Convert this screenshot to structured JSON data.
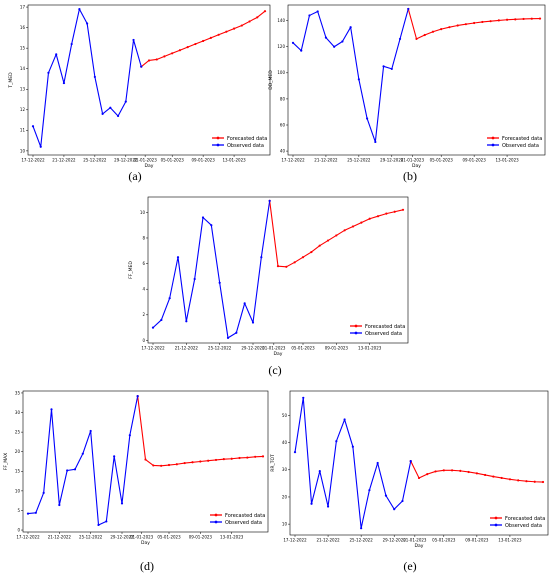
{
  "chart_data": [
    {
      "id": "a",
      "panel_label": "(a)",
      "type": "line",
      "xlabel": "Day",
      "ylabel": "T_MED",
      "ylim": [
        9.8,
        17.1
      ],
      "yticks": [
        10,
        11,
        12,
        13,
        14,
        15,
        16,
        17
      ],
      "xlim": [
        0,
        30
      ],
      "xtick_labels": [
        "17-12-2022",
        "21-12-2022",
        "25-12-2022",
        "29-12-2022",
        "01-01-2023",
        "05-01-2023",
        "09-01-2023",
        "13-01-2023"
      ],
      "xtick_pos": [
        0,
        4,
        8,
        12,
        14.5,
        18,
        22,
        26
      ],
      "legend_loc": "lower right",
      "legend": {
        "forecast": "Forecasted data",
        "observed": "Observed data"
      },
      "colors": {
        "forecast": "#ff0000",
        "observed": "#0000ff"
      },
      "observed": {
        "x": [
          0,
          1,
          2,
          3,
          4,
          5,
          6,
          7,
          8,
          9,
          10,
          11,
          12,
          13,
          14
        ],
        "y": [
          11.2,
          10.2,
          13.8,
          14.7,
          13.3,
          15.2,
          16.9,
          16.2,
          13.6,
          11.8,
          12.1,
          11.7,
          12.4,
          15.4,
          14.1
        ]
      },
      "forecast": {
        "x": [
          14,
          15,
          16,
          17,
          18,
          19,
          20,
          21,
          22,
          23,
          24,
          25,
          26,
          27,
          28,
          29,
          30
        ],
        "y": [
          14.1,
          14.4,
          14.45,
          14.6,
          14.75,
          14.9,
          15.05,
          15.2,
          15.35,
          15.5,
          15.65,
          15.8,
          15.95,
          16.1,
          16.3,
          16.5,
          16.8
        ]
      }
    },
    {
      "id": "b",
      "panel_label": "(b)",
      "type": "line",
      "xlabel": "Day",
      "ylabel": "DD_MED",
      "ylim": [
        37,
        152
      ],
      "yticks": [
        40,
        60,
        80,
        100,
        120,
        140
      ],
      "xlim": [
        0,
        30
      ],
      "xtick_labels": [
        "17-12-2022",
        "21-12-2022",
        "25-12-2022",
        "29-12-2022",
        "01-01-2023",
        "05-01-2023",
        "09-01-2023",
        "13-01-2023"
      ],
      "xtick_pos": [
        0,
        4,
        8,
        12,
        14.5,
        18,
        22,
        26
      ],
      "legend_loc": "lower right",
      "legend": {
        "forecast": "Forecasted data",
        "observed": "Observed data"
      },
      "colors": {
        "forecast": "#ff0000",
        "observed": "#0000ff"
      },
      "observed": {
        "x": [
          0,
          1,
          2,
          3,
          4,
          5,
          6,
          7,
          8,
          9,
          10,
          11,
          12,
          13,
          14
        ],
        "y": [
          123,
          117,
          144,
          147,
          127,
          120,
          124,
          135,
          95,
          65,
          47,
          105,
          103,
          126,
          149
        ]
      },
      "forecast": {
        "x": [
          14,
          15,
          16,
          17,
          18,
          19,
          20,
          21,
          22,
          23,
          24,
          25,
          26,
          27,
          28,
          29,
          30
        ],
        "y": [
          149,
          126,
          129,
          131.5,
          133.5,
          135,
          136.3,
          137.3,
          138.2,
          139,
          139.6,
          140.2,
          140.7,
          141,
          141.3,
          141.5,
          141.6
        ]
      }
    },
    {
      "id": "c",
      "panel_label": "(c)",
      "type": "line",
      "xlabel": "Day",
      "ylabel": "FF_MED",
      "ylim": [
        -0.2,
        11.2
      ],
      "yticks": [
        0,
        2,
        4,
        6,
        8,
        10
      ],
      "xlim": [
        0,
        30
      ],
      "xtick_labels": [
        "17-12-2022",
        "21-12-2022",
        "25-12-2022",
        "29-12-2022",
        "01-01-2023",
        "05-01-2023",
        "09-01-2023",
        "13-01-2023"
      ],
      "xtick_pos": [
        0,
        4,
        8,
        12,
        14.5,
        18,
        22,
        26
      ],
      "legend_loc": "lower right",
      "legend": {
        "forecast": "Forecasted data",
        "observed": "Observed data"
      },
      "colors": {
        "forecast": "#ff0000",
        "observed": "#0000ff"
      },
      "observed": {
        "x": [
          0,
          1,
          2,
          3,
          4,
          5,
          6,
          7,
          8,
          9,
          10,
          11,
          12,
          13,
          14
        ],
        "y": [
          1.0,
          1.6,
          3.3,
          6.5,
          1.5,
          4.8,
          9.6,
          9.0,
          4.5,
          0.2,
          0.6,
          2.9,
          1.4,
          6.5,
          10.9
        ]
      },
      "forecast": {
        "x": [
          14,
          15,
          16,
          17,
          18,
          19,
          20,
          21,
          22,
          23,
          24,
          25,
          26,
          27,
          28,
          29,
          30
        ],
        "y": [
          10.9,
          5.8,
          5.75,
          6.1,
          6.5,
          6.9,
          7.4,
          7.8,
          8.2,
          8.6,
          8.9,
          9.2,
          9.5,
          9.7,
          9.9,
          10.05,
          10.2
        ]
      }
    },
    {
      "id": "d",
      "panel_label": "(d)",
      "type": "line",
      "xlabel": "Day",
      "ylabel": "FF_MAX",
      "ylim": [
        -0.5,
        35.5
      ],
      "yticks": [
        0,
        5,
        10,
        15,
        20,
        25,
        30,
        35
      ],
      "xlim": [
        0,
        30
      ],
      "xtick_labels": [
        "17-12-2022",
        "21-12-2022",
        "25-12-2022",
        "29-12-2022",
        "01-01-2023",
        "05-01-2023",
        "09-01-2023",
        "13-01-2023"
      ],
      "xtick_pos": [
        0,
        4,
        8,
        12,
        14.5,
        18,
        22,
        26
      ],
      "legend_loc": "lower right",
      "legend": {
        "forecast": "Forecasted data",
        "observed": "Observed data"
      },
      "colors": {
        "forecast": "#ff0000",
        "observed": "#0000ff"
      },
      "observed": {
        "x": [
          0,
          1,
          2,
          3,
          4,
          5,
          6,
          7,
          8,
          9,
          10,
          11,
          12,
          13,
          14
        ],
        "y": [
          4.2,
          4.4,
          9.5,
          30.8,
          6.4,
          15.2,
          15.5,
          19.5,
          25.3,
          1.3,
          2.2,
          18.8,
          6.8,
          24.2,
          34.2
        ]
      },
      "forecast": {
        "x": [
          14,
          15,
          16,
          17,
          18,
          19,
          20,
          21,
          22,
          23,
          24,
          25,
          26,
          27,
          28,
          29,
          30
        ],
        "y": [
          34.2,
          18.0,
          16.5,
          16.4,
          16.6,
          16.8,
          17.1,
          17.3,
          17.5,
          17.7,
          17.9,
          18.1,
          18.2,
          18.4,
          18.5,
          18.7,
          18.8
        ]
      }
    },
    {
      "id": "e",
      "panel_label": "(e)",
      "type": "line",
      "xlabel": "Day",
      "ylabel": "RR_TOT",
      "ylim": [
        6,
        59
      ],
      "yticks": [
        10,
        20,
        30,
        40,
        50
      ],
      "xlim": [
        0,
        30
      ],
      "xtick_labels": [
        "17-12-2022",
        "21-12-2022",
        "25-12-2022",
        "29-12-2022",
        "01-01-2023",
        "05-01-2023",
        "09-01-2023",
        "13-01-2023"
      ],
      "xtick_pos": [
        0,
        4,
        8,
        12,
        14.5,
        18,
        22,
        26
      ],
      "legend_loc": "lower right",
      "legend": {
        "forecast": "Forecasted data",
        "observed": "Observed data"
      },
      "colors": {
        "forecast": "#ff0000",
        "observed": "#0000ff"
      },
      "observed": {
        "x": [
          0,
          1,
          2,
          3,
          4,
          5,
          6,
          7,
          8,
          9,
          10,
          11,
          12,
          13,
          14
        ],
        "y": [
          36.5,
          56.5,
          17.5,
          29.5,
          16.5,
          40.5,
          48.5,
          38.5,
          8.5,
          22.5,
          32.5,
          20.5,
          15.5,
          18.5,
          33.2
        ]
      },
      "forecast": {
        "x": [
          14,
          15,
          16,
          17,
          18,
          19,
          20,
          21,
          22,
          23,
          24,
          25,
          26,
          27,
          28,
          29,
          30
        ],
        "y": [
          33.2,
          27.0,
          28.4,
          29.4,
          29.8,
          29.8,
          29.6,
          29.2,
          28.7,
          28.1,
          27.5,
          27.0,
          26.5,
          26.1,
          25.8,
          25.6,
          25.5
        ]
      }
    }
  ]
}
